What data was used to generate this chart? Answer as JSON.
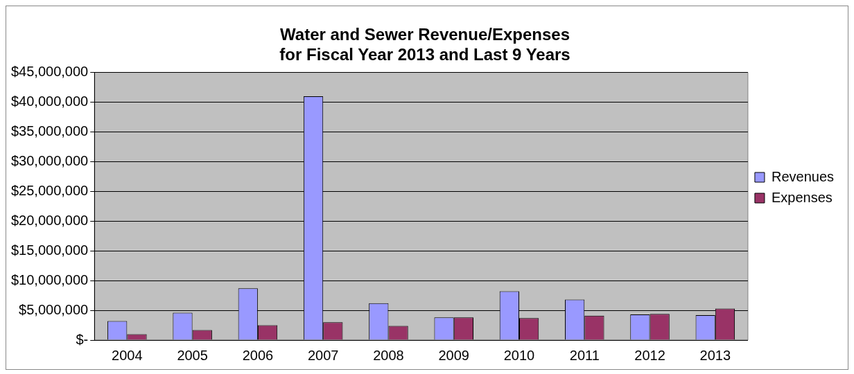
{
  "chart_data": {
    "type": "bar",
    "title": "Water and Sewer Revenue/Expenses\nfor Fiscal Year 2013 and Last 9 Years",
    "categories": [
      "2004",
      "2005",
      "2006",
      "2007",
      "2008",
      "2009",
      "2010",
      "2011",
      "2012",
      "2013"
    ],
    "series": [
      {
        "name": "Revenues",
        "color": "#9999ff",
        "values": [
          3200000,
          4600000,
          8700000,
          41000000,
          6200000,
          3800000,
          8200000,
          6800000,
          4300000,
          4200000
        ]
      },
      {
        "name": "Expenses",
        "color": "#993366",
        "values": [
          1000000,
          1700000,
          2500000,
          3000000,
          2400000,
          3800000,
          3700000,
          4100000,
          4400000,
          5300000
        ]
      }
    ],
    "ylim": [
      0,
      45000000
    ],
    "yticks": [
      {
        "value": 0,
        "label": "$-"
      },
      {
        "value": 5000000,
        "label": "$5,000,000"
      },
      {
        "value": 10000000,
        "label": "$10,000,000"
      },
      {
        "value": 15000000,
        "label": "$15,000,000"
      },
      {
        "value": 20000000,
        "label": "$20,000,000"
      },
      {
        "value": 25000000,
        "label": "$25,000,000"
      },
      {
        "value": 30000000,
        "label": "$30,000,000"
      },
      {
        "value": 35000000,
        "label": "$35,000,000"
      },
      {
        "value": 40000000,
        "label": "$40,000,000"
      },
      {
        "value": 45000000,
        "label": "$45,000,000"
      }
    ],
    "grid": "y",
    "legend": "right"
  }
}
